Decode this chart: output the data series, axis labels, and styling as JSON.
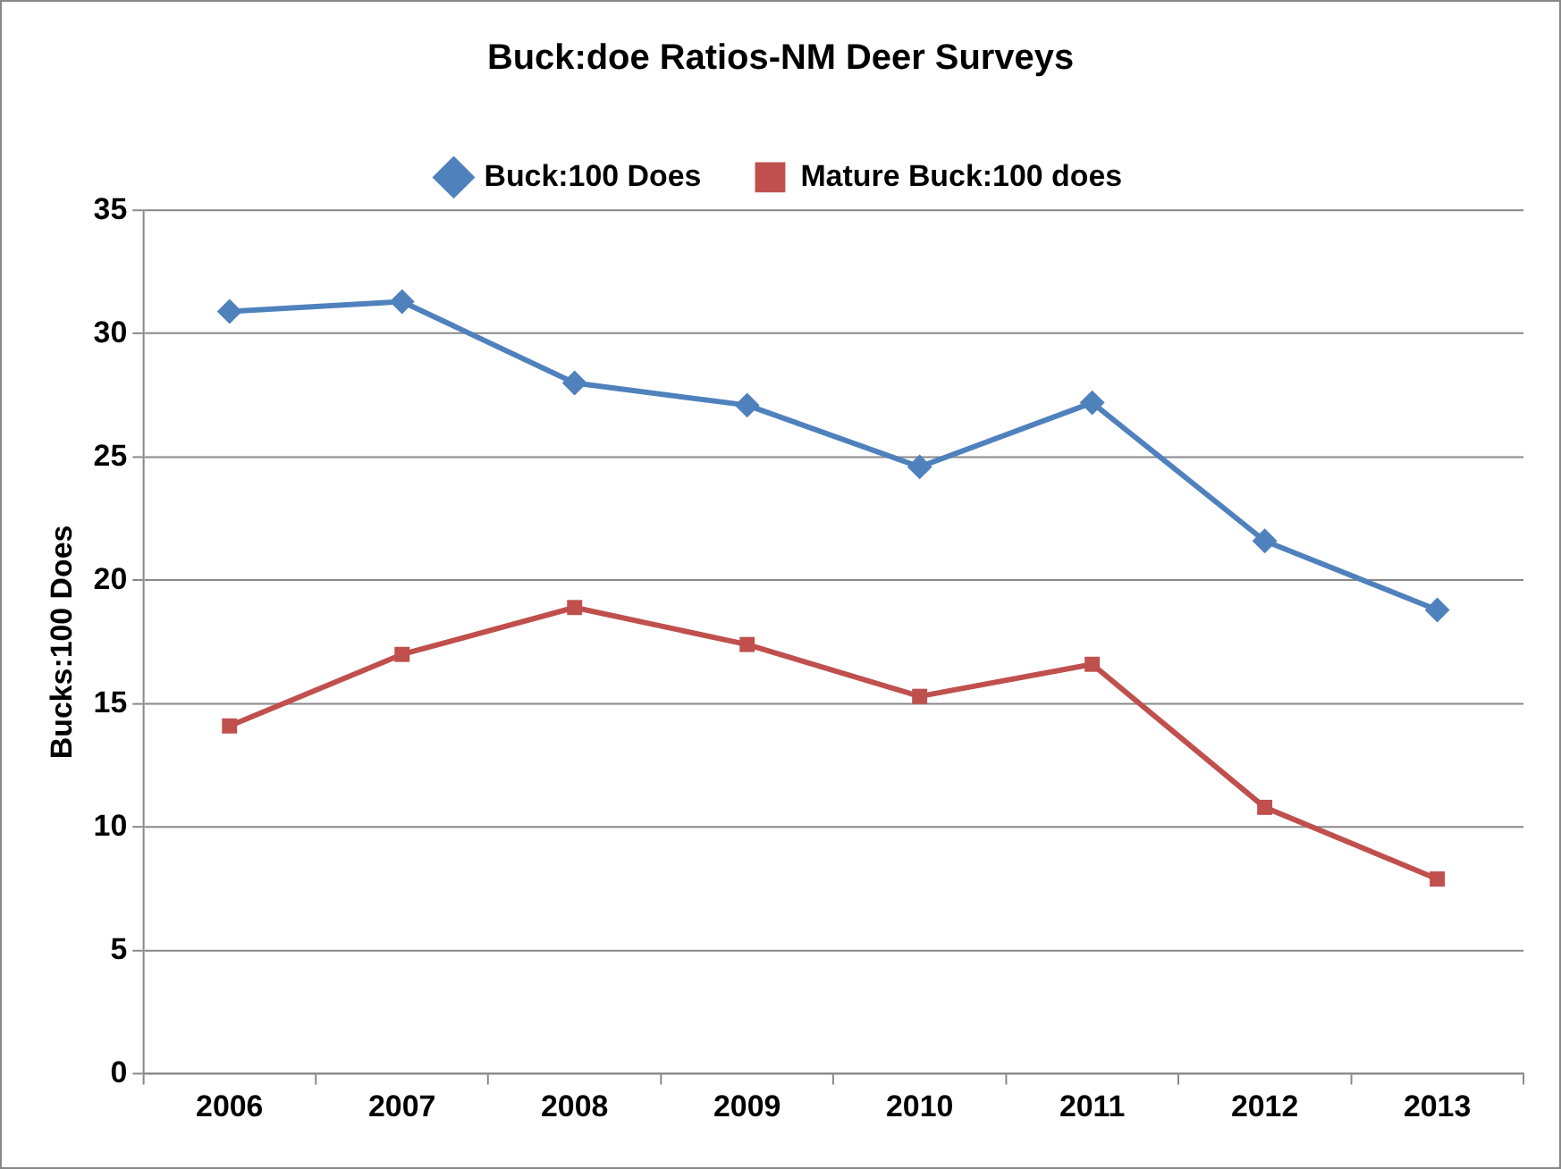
{
  "chart_data": {
    "type": "line",
    "title": "Buck:doe Ratios-NM Deer Surveys",
    "ylabel": "Bucks:100 Does",
    "categories": [
      "2006",
      "2007",
      "2008",
      "2009",
      "2010",
      "2011",
      "2012",
      "2013"
    ],
    "series": [
      {
        "name": "Buck:100 Does",
        "color": "#4f81bd",
        "marker": "diamond",
        "values": [
          30.9,
          31.3,
          28.0,
          27.1,
          24.6,
          27.2,
          21.6,
          18.8
        ]
      },
      {
        "name": "Mature Buck:100 does",
        "color": "#c0504d",
        "marker": "square",
        "values": [
          14.1,
          17.0,
          18.9,
          17.4,
          15.3,
          16.6,
          10.8,
          7.9
        ]
      }
    ],
    "ylim": [
      0,
      35
    ],
    "yticks": [
      0,
      5,
      10,
      15,
      20,
      25,
      30,
      35
    ],
    "grid": "y",
    "legend": "top",
    "line_style": "solid"
  }
}
